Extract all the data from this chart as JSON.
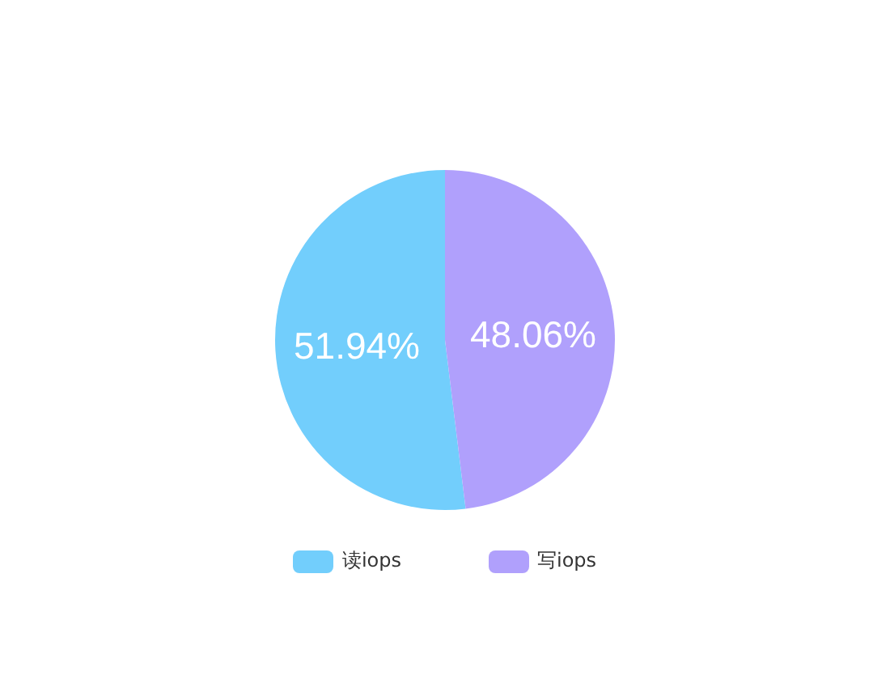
{
  "chart_data": {
    "type": "pie",
    "categories": [
      "读iops",
      "写iops"
    ],
    "values": [
      51.94,
      48.06
    ],
    "colors": [
      "#72cefc",
      "#b0a0fc"
    ],
    "value_labels": [
      "51.94%",
      "48.06%"
    ],
    "legend": "bottom"
  }
}
